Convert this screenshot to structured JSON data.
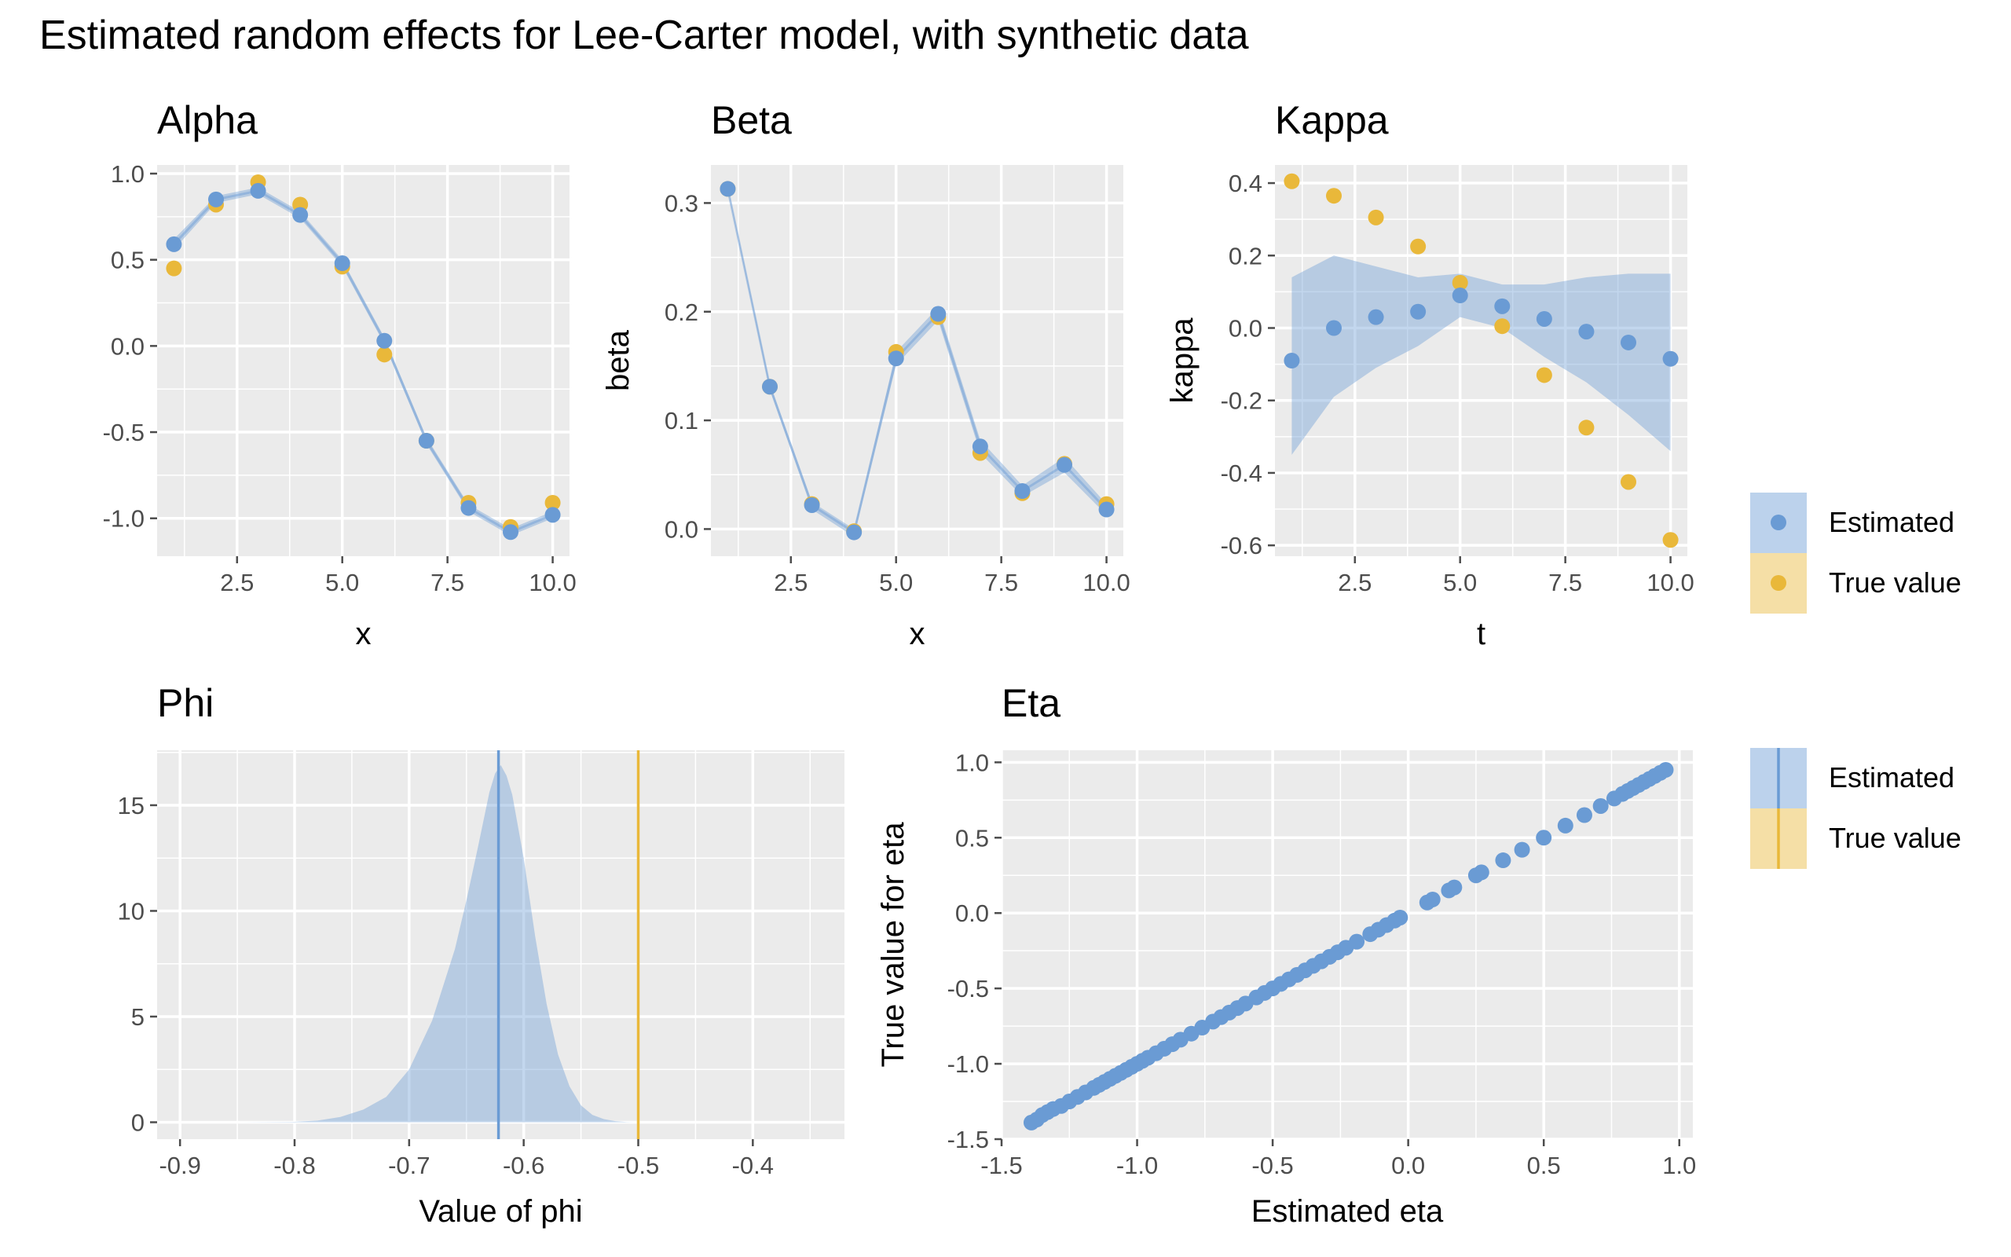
{
  "figure_title": "Estimated random effects for Lee-Carter model, with synthetic data",
  "colors": {
    "estimated": "#6A9BD4",
    "true_value": "#E9B83A",
    "panel_bg": "#EBEBEB",
    "grid": "#FFFFFF",
    "tick": "#4D4D4D"
  },
  "legends": [
    {
      "items": [
        {
          "label": "Estimated",
          "glyph": "point-on-band"
        },
        {
          "label": "True value",
          "glyph": "point-on-band"
        }
      ]
    },
    {
      "items": [
        {
          "label": "Estimated",
          "glyph": "vline-on-band"
        },
        {
          "label": "True value",
          "glyph": "vline-on-band"
        }
      ]
    }
  ],
  "chart_data": [
    {
      "id": "alpha",
      "type": "line",
      "title": "Alpha",
      "xlabel": "x",
      "ylabel": "",
      "xlim": [
        0.6,
        10.4
      ],
      "ylim": [
        -1.22,
        1.05
      ],
      "xticks": [
        2.5,
        5.0,
        7.5,
        10.0
      ],
      "xtick_labels": [
        "2.5",
        "5.0",
        "7.5",
        "10.0"
      ],
      "yticks": [
        -1.0,
        -0.5,
        0.0,
        0.5,
        1.0
      ],
      "ytick_labels": [
        "-1.0",
        "-0.5",
        "0.0",
        "0.5",
        "1.0"
      ],
      "x": [
        1,
        2,
        3,
        4,
        5,
        6,
        7,
        8,
        9,
        10
      ],
      "series": [
        {
          "name": "Estimated",
          "values": [
            0.59,
            0.85,
            0.9,
            0.76,
            0.48,
            0.03,
            -0.55,
            -0.94,
            -1.08,
            -0.98
          ],
          "lower": [
            0.56,
            0.83,
            0.88,
            0.74,
            0.46,
            0.01,
            -0.57,
            -0.96,
            -1.1,
            -1.0
          ],
          "upper": [
            0.62,
            0.87,
            0.92,
            0.78,
            0.5,
            0.05,
            -0.53,
            -0.92,
            -1.06,
            -0.96
          ]
        },
        {
          "name": "True value",
          "values": [
            0.45,
            0.82,
            0.95,
            0.82,
            0.46,
            -0.05,
            -0.55,
            -0.91,
            -1.05,
            -0.91
          ]
        }
      ]
    },
    {
      "id": "beta",
      "type": "line",
      "title": "Beta",
      "xlabel": "x",
      "ylabel": "beta",
      "xlim": [
        0.6,
        10.4
      ],
      "ylim": [
        -0.025,
        0.335
      ],
      "xticks": [
        2.5,
        5.0,
        7.5,
        10.0
      ],
      "xtick_labels": [
        "2.5",
        "5.0",
        "7.5",
        "10.0"
      ],
      "yticks": [
        0.0,
        0.1,
        0.2,
        0.3
      ],
      "ytick_labels": [
        "0.0",
        "0.1",
        "0.2",
        "0.3"
      ],
      "x": [
        1,
        2,
        3,
        4,
        5,
        6,
        7,
        8,
        9,
        10
      ],
      "series": [
        {
          "name": "Estimated",
          "values": [
            0.313,
            0.131,
            0.022,
            -0.003,
            0.157,
            0.198,
            0.076,
            0.035,
            0.059,
            0.018
          ],
          "lower": [
            0.312,
            0.128,
            0.018,
            -0.007,
            0.151,
            0.192,
            0.07,
            0.03,
            0.052,
            0.013
          ],
          "upper": [
            0.315,
            0.134,
            0.025,
            0.0,
            0.163,
            0.204,
            0.082,
            0.04,
            0.066,
            0.023
          ]
        },
        {
          "name": "True value",
          "values": [
            0.313,
            0.131,
            0.023,
            -0.002,
            0.163,
            0.195,
            0.07,
            0.033,
            0.06,
            0.023
          ]
        }
      ]
    },
    {
      "id": "kappa",
      "type": "line",
      "title": "Kappa",
      "xlabel": "t",
      "ylabel": "kappa",
      "xlim": [
        0.6,
        10.4
      ],
      "ylim": [
        -0.63,
        0.45
      ],
      "xticks": [
        2.5,
        5.0,
        7.5,
        10.0
      ],
      "xtick_labels": [
        "2.5",
        "5.0",
        "7.5",
        "10.0"
      ],
      "yticks": [
        -0.6,
        -0.4,
        -0.2,
        0.0,
        0.2,
        0.4
      ],
      "ytick_labels": [
        "-0.6",
        "-0.4",
        "-0.2",
        "0.0",
        "0.2",
        "0.4"
      ],
      "x": [
        1,
        2,
        3,
        4,
        5,
        6,
        7,
        8,
        9,
        10
      ],
      "series": [
        {
          "name": "Estimated",
          "values": [
            -0.09,
            0.0,
            0.03,
            0.045,
            0.09,
            0.06,
            0.025,
            -0.01,
            -0.04,
            -0.085
          ],
          "lower": [
            -0.35,
            -0.19,
            -0.11,
            -0.05,
            0.03,
            0.0,
            -0.08,
            -0.15,
            -0.24,
            -0.34
          ],
          "upper": [
            0.14,
            0.2,
            0.17,
            0.14,
            0.15,
            0.12,
            0.12,
            0.14,
            0.15,
            0.15
          ]
        },
        {
          "name": "True value",
          "values": [
            0.405,
            0.365,
            0.305,
            0.225,
            0.125,
            0.005,
            -0.13,
            -0.275,
            -0.425,
            -0.585
          ]
        }
      ]
    },
    {
      "id": "phi",
      "type": "area",
      "title": "Phi",
      "xlabel": "Value of phi",
      "ylabel": "",
      "xlim": [
        -0.92,
        -0.32
      ],
      "ylim": [
        -0.8,
        17.6
      ],
      "xticks": [
        -0.9,
        -0.8,
        -0.7,
        -0.6,
        -0.5,
        -0.4
      ],
      "xtick_labels": [
        "-0.9",
        "-0.8",
        "-0.7",
        "-0.6",
        "-0.5",
        "-0.4"
      ],
      "yticks": [
        0,
        5,
        10,
        15
      ],
      "ytick_labels": [
        "0",
        "5",
        "10",
        "15"
      ],
      "x": [
        -0.9,
        -0.85,
        -0.8,
        -0.78,
        -0.76,
        -0.74,
        -0.72,
        -0.7,
        -0.68,
        -0.66,
        -0.65,
        -0.64,
        -0.63,
        -0.625,
        -0.62,
        -0.615,
        -0.61,
        -0.6,
        -0.59,
        -0.58,
        -0.57,
        -0.56,
        -0.55,
        -0.54,
        -0.53,
        -0.52,
        -0.51,
        -0.5
      ],
      "series": [
        {
          "name": "Estimated",
          "values": [
            0.0,
            0.0,
            0.02,
            0.08,
            0.25,
            0.6,
            1.2,
            2.5,
            4.8,
            8.2,
            10.5,
            13.0,
            15.6,
            16.5,
            16.9,
            16.4,
            15.5,
            12.5,
            8.8,
            5.6,
            3.2,
            1.7,
            0.8,
            0.35,
            0.15,
            0.05,
            0.01,
            0.0
          ]
        }
      ],
      "estimated_value": -0.622,
      "true_value": -0.5
    },
    {
      "id": "eta",
      "type": "scatter",
      "title": "Eta",
      "xlabel": "Estimated eta",
      "ylabel": "True value for eta",
      "xlim": [
        -1.5,
        1.05
      ],
      "ylim": [
        -1.5,
        1.08
      ],
      "xticks": [
        -1.5,
        -1.0,
        -0.5,
        0.0,
        0.5,
        1.0
      ],
      "xtick_labels": [
        "-1.5",
        "-1.0",
        "-0.5",
        "0.0",
        "0.5",
        "1.0"
      ],
      "yticks": [
        -1.5,
        -1.0,
        -0.5,
        0.0,
        0.5,
        1.0
      ],
      "ytick_labels": [
        "-1.5",
        "-1.0",
        "-0.5",
        "0.0",
        "0.5",
        "1.0"
      ],
      "series": [
        {
          "name": "Estimated",
          "x": [
            -1.39,
            -1.37,
            -1.35,
            -1.33,
            -1.31,
            -1.28,
            -1.25,
            -1.22,
            -1.19,
            -1.16,
            -1.14,
            -1.12,
            -1.1,
            -1.08,
            -1.06,
            -1.04,
            -1.02,
            -1.0,
            -0.98,
            -0.96,
            -0.93,
            -0.9,
            -0.87,
            -0.84,
            -0.8,
            -0.76,
            -0.72,
            -0.69,
            -0.66,
            -0.63,
            -0.6,
            -0.56,
            -0.53,
            -0.5,
            -0.47,
            -0.44,
            -0.41,
            -0.38,
            -0.35,
            -0.32,
            -0.29,
            -0.26,
            -0.23,
            -0.19,
            -0.14,
            -0.11,
            -0.08,
            -0.05,
            -0.03,
            0.07,
            0.09,
            0.15,
            0.17,
            0.25,
            0.27,
            0.35,
            0.42,
            0.5,
            0.58,
            0.65,
            0.71,
            0.76,
            0.79,
            0.81,
            0.83,
            0.85,
            0.87,
            0.89,
            0.91,
            0.93,
            0.95
          ],
          "y": [
            -1.39,
            -1.37,
            -1.34,
            -1.32,
            -1.3,
            -1.28,
            -1.25,
            -1.22,
            -1.19,
            -1.16,
            -1.14,
            -1.12,
            -1.1,
            -1.08,
            -1.06,
            -1.04,
            -1.02,
            -1.0,
            -0.98,
            -0.96,
            -0.93,
            -0.9,
            -0.87,
            -0.84,
            -0.8,
            -0.76,
            -0.72,
            -0.69,
            -0.66,
            -0.63,
            -0.6,
            -0.56,
            -0.53,
            -0.5,
            -0.47,
            -0.44,
            -0.41,
            -0.38,
            -0.35,
            -0.32,
            -0.29,
            -0.26,
            -0.23,
            -0.19,
            -0.14,
            -0.11,
            -0.08,
            -0.05,
            -0.03,
            0.07,
            0.09,
            0.15,
            0.17,
            0.25,
            0.27,
            0.35,
            0.42,
            0.5,
            0.58,
            0.65,
            0.71,
            0.76,
            0.79,
            0.81,
            0.83,
            0.85,
            0.87,
            0.89,
            0.91,
            0.93,
            0.95
          ]
        }
      ]
    }
  ]
}
